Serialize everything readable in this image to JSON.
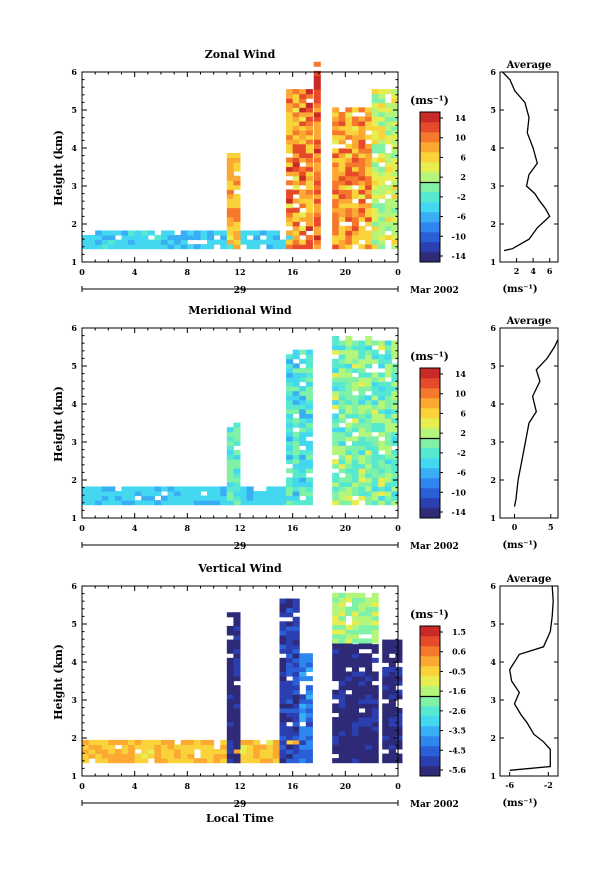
{
  "figure": {
    "xlabel_bottom": "Local Time",
    "date_label": "Mar 2002",
    "day_label": "29",
    "units_label": "(ms⁻¹)",
    "avg_title": "Average"
  },
  "chart_data": [
    {
      "type": "heatmap",
      "title": "Zonal Wind",
      "ylabel": "Height (km)",
      "xlabel": "",
      "xticks": [
        "0",
        "4",
        "8",
        "12",
        "16",
        "20",
        "0"
      ],
      "xlim": [
        0,
        24
      ],
      "ylim": [
        1,
        6
      ],
      "yticks": [
        "1",
        "2",
        "3",
        "4",
        "5",
        "6"
      ],
      "colorbar": {
        "unit": "(ms⁻¹)",
        "ticks": [
          "14",
          "10",
          "6",
          "2",
          "-2",
          "-6",
          "-10",
          "-14"
        ],
        "min": -16,
        "max": 16
      },
      "average_profile": {
        "title": "Average",
        "xlabel": "(ms⁻¹)",
        "xticks": [
          "2",
          "4",
          "6"
        ],
        "xlim": [
          0,
          7
        ],
        "points": [
          [
            0.5,
            1.3
          ],
          [
            1.5,
            1.35
          ],
          [
            3.5,
            1.6
          ],
          [
            4.5,
            1.9
          ],
          [
            6.0,
            2.2
          ],
          [
            5.5,
            2.4
          ],
          [
            4.8,
            2.6
          ],
          [
            4.2,
            2.8
          ],
          [
            3.2,
            3.0
          ],
          [
            3.5,
            3.3
          ],
          [
            4.5,
            3.6
          ],
          [
            4.0,
            4.0
          ],
          [
            3.3,
            4.4
          ],
          [
            3.5,
            4.8
          ],
          [
            3.0,
            5.2
          ],
          [
            1.8,
            5.5
          ],
          [
            1.2,
            5.8
          ],
          [
            0.3,
            6.0
          ]
        ]
      }
    },
    {
      "type": "heatmap",
      "title": "Meridional Wind",
      "ylabel": "Height (km)",
      "xlabel": "",
      "xticks": [
        "0",
        "4",
        "8",
        "12",
        "16",
        "20",
        "0"
      ],
      "xlim": [
        0,
        24
      ],
      "ylim": [
        1,
        6
      ],
      "yticks": [
        "1",
        "2",
        "3",
        "4",
        "5",
        "6"
      ],
      "colorbar": {
        "unit": "(ms⁻¹)",
        "ticks": [
          "14",
          "10",
          "6",
          "2",
          "-2",
          "-6",
          "-10",
          "-14"
        ],
        "min": -16,
        "max": 16
      },
      "average_profile": {
        "title": "Average",
        "xlabel": "(ms⁻¹)",
        "xticks": [
          "0",
          "5"
        ],
        "xlim": [
          -2,
          6
        ],
        "points": [
          [
            0,
            1.3
          ],
          [
            0.2,
            1.5
          ],
          [
            0.5,
            2.0
          ],
          [
            1.0,
            2.5
          ],
          [
            1.5,
            3.0
          ],
          [
            2.0,
            3.5
          ],
          [
            3.0,
            3.8
          ],
          [
            2.5,
            4.2
          ],
          [
            3.5,
            4.6
          ],
          [
            3.0,
            4.9
          ],
          [
            4.5,
            5.2
          ],
          [
            5.5,
            5.5
          ],
          [
            6.0,
            5.7
          ]
        ]
      }
    },
    {
      "type": "heatmap",
      "title": "Vertical Wind",
      "ylabel": "Height (km)",
      "xlabel": "Local Time",
      "xticks": [
        "0",
        "4",
        "8",
        "12",
        "16",
        "20",
        "0"
      ],
      "xlim": [
        0,
        24
      ],
      "ylim": [
        1,
        6
      ],
      "yticks": [
        "1",
        "2",
        "3",
        "4",
        "5",
        "6"
      ],
      "colorbar": {
        "unit": "(ms⁻¹)",
        "ticks": [
          "1.5",
          "0.6",
          "-0.5",
          "-1.6",
          "-2.6",
          "-3.5",
          "-4.5",
          "-5.6"
        ],
        "min": -6,
        "max": 2
      },
      "average_profile": {
        "title": "Average",
        "xlabel": "(ms⁻¹)",
        "xticks": [
          "-6",
          "-2"
        ],
        "xlim": [
          -7,
          -1
        ],
        "points": [
          [
            -6,
            1.15
          ],
          [
            -1.8,
            1.25
          ],
          [
            -1.8,
            1.7
          ],
          [
            -2.5,
            1.9
          ],
          [
            -3.5,
            2.1
          ],
          [
            -4.2,
            2.4
          ],
          [
            -4.8,
            2.6
          ],
          [
            -5.5,
            2.9
          ],
          [
            -5.0,
            3.2
          ],
          [
            -5.8,
            3.5
          ],
          [
            -6.0,
            3.8
          ],
          [
            -5.0,
            4.2
          ],
          [
            -2.5,
            4.4
          ],
          [
            -1.8,
            4.8
          ],
          [
            -1.6,
            5.2
          ],
          [
            -1.5,
            5.6
          ],
          [
            -1.6,
            6.0
          ]
        ]
      }
    }
  ]
}
